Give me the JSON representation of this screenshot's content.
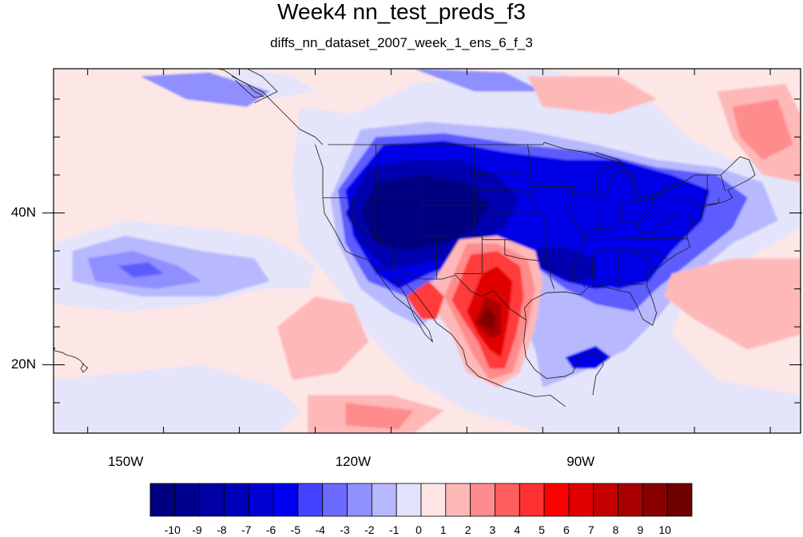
{
  "title": "Week4 nn_test_preds_f3",
  "subtitle": "diffs_nn_dataset_2007_week_1_ens_6_f_3",
  "axes": {
    "lat_labels": [
      {
        "text": "40N",
        "lat": 40
      },
      {
        "text": "20N",
        "lat": 20
      }
    ],
    "lon_labels": [
      {
        "text": "150W",
        "lon": -150
      },
      {
        "text": "120W",
        "lon": -120
      },
      {
        "text": "90W",
        "lon": -90
      }
    ],
    "lon_range": [
      -159.5,
      -61
    ],
    "lat_range": [
      11,
      59
    ]
  },
  "colorbar": {
    "labels": [
      "-10",
      "-9",
      "-8",
      "-7",
      "-6",
      "-5",
      "-4",
      "-3",
      "-2",
      "-1",
      "0",
      "1",
      "2",
      "3",
      "4",
      "5",
      "6",
      "7",
      "8",
      "9",
      "10"
    ],
    "colors": [
      "#000080",
      "#00008e",
      "#0000a3",
      "#0000b8",
      "#0000d2",
      "#0000f0",
      "#4343ff",
      "#6b6bff",
      "#9090ff",
      "#b8b8ff",
      "#e3e3fc",
      "#ffe6e6",
      "#ffb8b8",
      "#ff8c8c",
      "#ff5f5f",
      "#ff3232",
      "#ff0000",
      "#e00000",
      "#c40000",
      "#a80000",
      "#880000",
      "#6e0000"
    ]
  },
  "field": {
    "colors": {
      "bg_pos": "#fde6e6",
      "bg_neg": "#e4e4fa",
      "neg2": "#b8b8ff",
      "neg3": "#8f8fff",
      "neg4": "#5c5cff",
      "neg6": "#0000e6",
      "neg8": "#0000b0",
      "neg10": "#000080",
      "pos2": "#ffb8b8",
      "pos3": "#ff8c8c",
      "pos5": "#ff3a3a",
      "pos7": "#e00000",
      "pos9": "#aa0000",
      "pos10": "#800000"
    }
  }
}
